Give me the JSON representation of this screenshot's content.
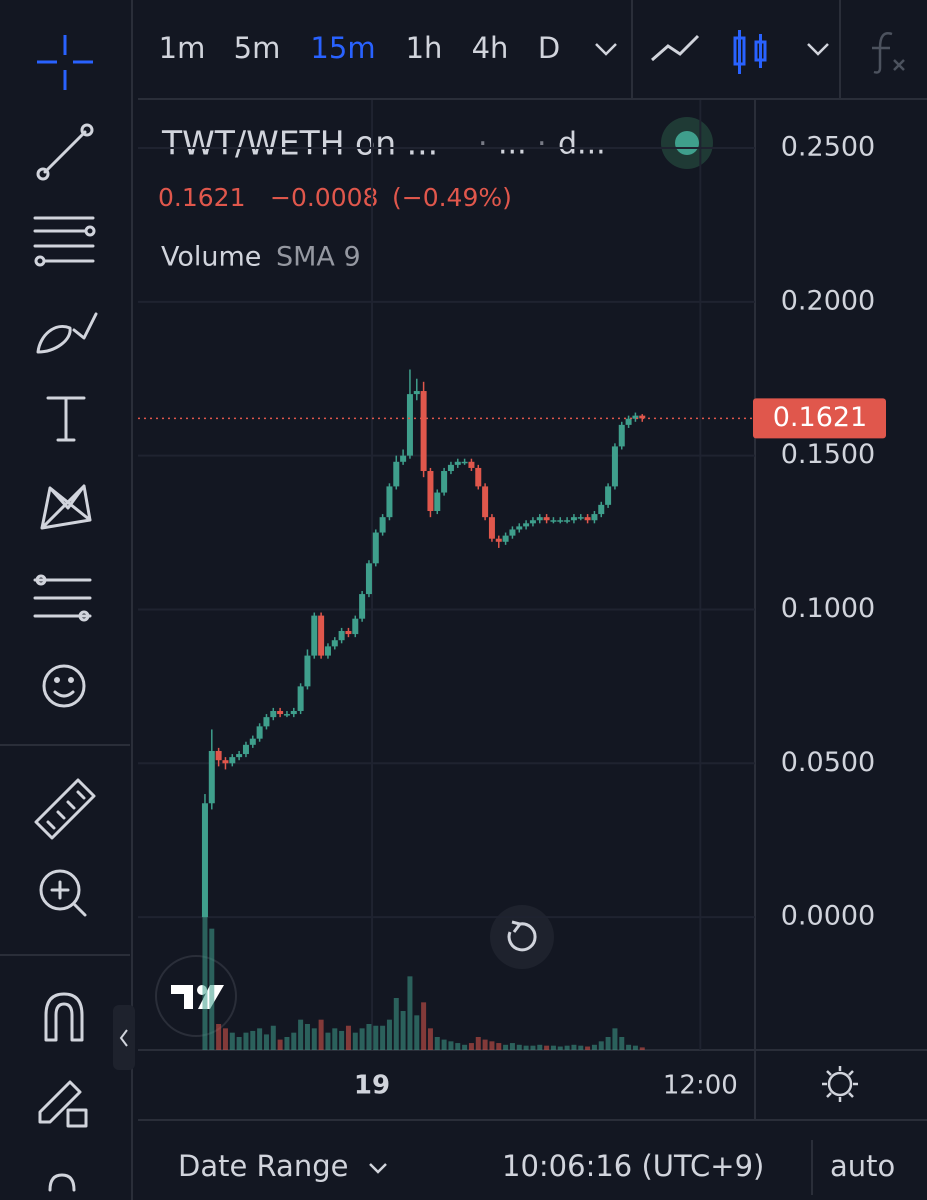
{
  "toolbar": {
    "intervals": [
      "1m",
      "5m",
      "15m",
      "1h",
      "4h",
      "D"
    ],
    "active_interval": "15m"
  },
  "legend": {
    "symbol": "TWT/WETH on ...",
    "parts": [
      "...",
      "d..."
    ],
    "price": "0.1621",
    "change": "−0.0008",
    "change_pct": "(−0.49%)",
    "indicator": "Volume",
    "indicator_params": "SMA 9"
  },
  "chart_data": {
    "type": "candlestick",
    "open": [
      0.0,
      0.037,
      0.054,
      0.051,
      0.05,
      0.052,
      0.053,
      0.056,
      0.058,
      0.062,
      0.065,
      0.067,
      0.066,
      0.066,
      0.067,
      0.075,
      0.085,
      0.098,
      0.085,
      0.088,
      0.09,
      0.093,
      0.092,
      0.097,
      0.105,
      0.115,
      0.125,
      0.13,
      0.14,
      0.148,
      0.15,
      0.17,
      0.171,
      0.145,
      0.132,
      0.138,
      0.145,
      0.147,
      0.148,
      0.148,
      0.146,
      0.14,
      0.13,
      0.123,
      0.122,
      0.124,
      0.126,
      0.127,
      0.128,
      0.129,
      0.13,
      0.129,
      0.129,
      0.129,
      0.129,
      0.13,
      0.13,
      0.129,
      0.131,
      0.134,
      0.14,
      0.153,
      0.16,
      0.162,
      0.163
    ],
    "high": [
      0.04,
      0.061,
      0.055,
      0.052,
      0.053,
      0.054,
      0.057,
      0.059,
      0.063,
      0.066,
      0.068,
      0.068,
      0.067,
      0.068,
      0.076,
      0.087,
      0.099,
      0.099,
      0.089,
      0.091,
      0.094,
      0.094,
      0.098,
      0.106,
      0.116,
      0.126,
      0.131,
      0.141,
      0.15,
      0.152,
      0.178,
      0.175,
      0.174,
      0.146,
      0.139,
      0.146,
      0.148,
      0.149,
      0.149,
      0.149,
      0.147,
      0.141,
      0.131,
      0.124,
      0.125,
      0.127,
      0.128,
      0.129,
      0.13,
      0.131,
      0.131,
      0.13,
      0.13,
      0.13,
      0.131,
      0.131,
      0.131,
      0.132,
      0.135,
      0.141,
      0.154,
      0.161,
      0.163,
      0.164,
      0.1635
    ],
    "low": [
      0.0,
      0.035,
      0.049,
      0.048,
      0.049,
      0.051,
      0.052,
      0.055,
      0.057,
      0.061,
      0.064,
      0.065,
      0.065,
      0.065,
      0.066,
      0.074,
      0.084,
      0.084,
      0.084,
      0.087,
      0.089,
      0.091,
      0.091,
      0.096,
      0.104,
      0.114,
      0.124,
      0.129,
      0.139,
      0.147,
      0.149,
      0.168,
      0.143,
      0.13,
      0.131,
      0.137,
      0.144,
      0.146,
      0.147,
      0.145,
      0.139,
      0.129,
      0.122,
      0.12,
      0.121,
      0.123,
      0.125,
      0.126,
      0.127,
      0.128,
      0.128,
      0.128,
      0.128,
      0.128,
      0.128,
      0.129,
      0.128,
      0.128,
      0.13,
      0.133,
      0.139,
      0.152,
      0.159,
      0.161,
      0.161
    ],
    "close": [
      0.037,
      0.054,
      0.051,
      0.05,
      0.052,
      0.053,
      0.056,
      0.058,
      0.062,
      0.065,
      0.067,
      0.066,
      0.066,
      0.067,
      0.075,
      0.085,
      0.098,
      0.085,
      0.088,
      0.09,
      0.093,
      0.092,
      0.097,
      0.105,
      0.115,
      0.125,
      0.13,
      0.14,
      0.148,
      0.15,
      0.17,
      0.171,
      0.145,
      0.132,
      0.138,
      0.145,
      0.147,
      0.148,
      0.148,
      0.146,
      0.14,
      0.13,
      0.123,
      0.122,
      0.124,
      0.126,
      0.127,
      0.128,
      0.129,
      0.13,
      0.129,
      0.129,
      0.129,
      0.129,
      0.13,
      0.13,
      0.129,
      0.131,
      0.134,
      0.14,
      0.153,
      0.16,
      0.162,
      0.163,
      0.1621
    ],
    "volume": [
      250,
      140,
      30,
      25,
      20,
      15,
      20,
      22,
      25,
      18,
      28,
      12,
      15,
      20,
      35,
      30,
      25,
      35,
      20,
      25,
      22,
      28,
      20,
      25,
      30,
      28,
      28,
      35,
      60,
      45,
      85,
      40,
      55,
      25,
      15,
      12,
      10,
      8,
      6,
      8,
      15,
      12,
      10,
      8,
      6,
      8,
      6,
      5,
      5,
      6,
      5,
      5,
      4,
      5,
      6,
      5,
      4,
      6,
      10,
      15,
      25,
      15,
      6,
      5,
      3
    ],
    "volume_lim": [
      0,
      300
    ],
    "up_color": "#3f9f8c",
    "down_color": "#e0574c",
    "ylim": [
      -0.0432,
      0.2656
    ],
    "yticks": [
      {
        "value": 0,
        "label": "0.0000"
      },
      {
        "value": 0.05,
        "label": "0.0500"
      },
      {
        "value": 0.1,
        "label": "0.1000"
      },
      {
        "value": 0.15,
        "label": "0.1500"
      },
      {
        "value": 0.2,
        "label": "0.2000"
      },
      {
        "value": 0.25,
        "label": "0.2500"
      }
    ],
    "xlim": [
      -9.8,
      80.5
    ],
    "xticks": [
      {
        "value": 24.45,
        "label": "19"
      },
      {
        "value": 72.5,
        "label": "12:00"
      }
    ],
    "last_price": 0.1621,
    "grid": true
  },
  "footer": {
    "date_range": "Date Range",
    "clock": "10:06:16 (UTC+9)",
    "scale": "auto"
  }
}
